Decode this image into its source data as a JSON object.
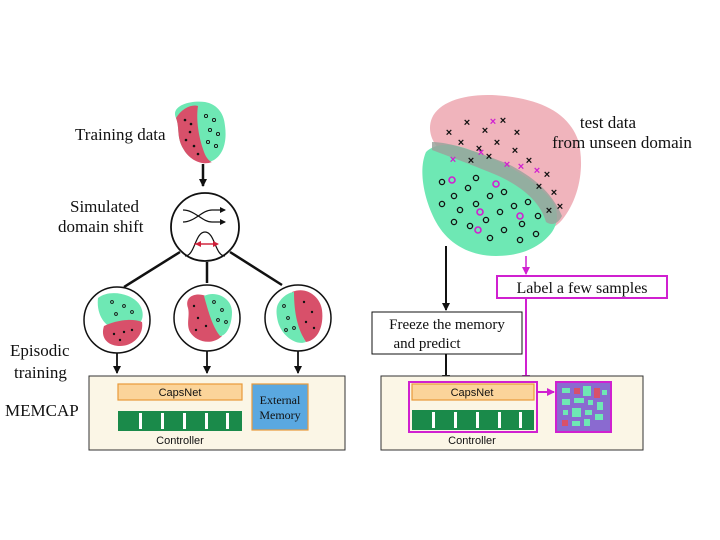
{
  "left": {
    "training_data_label": "Training data",
    "domain_shift_label_line1": "Simulated",
    "domain_shift_label_line2": "domain shift",
    "episodic_label_line1": "Episodic",
    "episodic_label_line2": "training",
    "model_label": "MEMCAP",
    "capsnet_label": "CapsNet",
    "controller_label": "Controller",
    "memory_label_line1": "External",
    "memory_label_line2": "Memory"
  },
  "right": {
    "test_data_line1": "test data",
    "test_data_line2": "from unseen domain",
    "label_samples": "Label a few samples",
    "freeze_line1": "Freeze the memory",
    "freeze_line2": "and predict",
    "capsnet_label": "CapsNet",
    "controller_label": "Controller"
  },
  "colors": {
    "green_region": "#6ee8b4",
    "red_region": "#d8506a",
    "pink_region": "#f0b4bc",
    "capsnet_fill": "#fbd49a",
    "capsnet_border": "#e89a3a",
    "controller_green": "#1a8a4a",
    "panel_fill": "#fbf6e6",
    "memory_fill": "#5aa8e0",
    "magenta": "#d020d0",
    "memory_purple": "#8a6ad0"
  }
}
